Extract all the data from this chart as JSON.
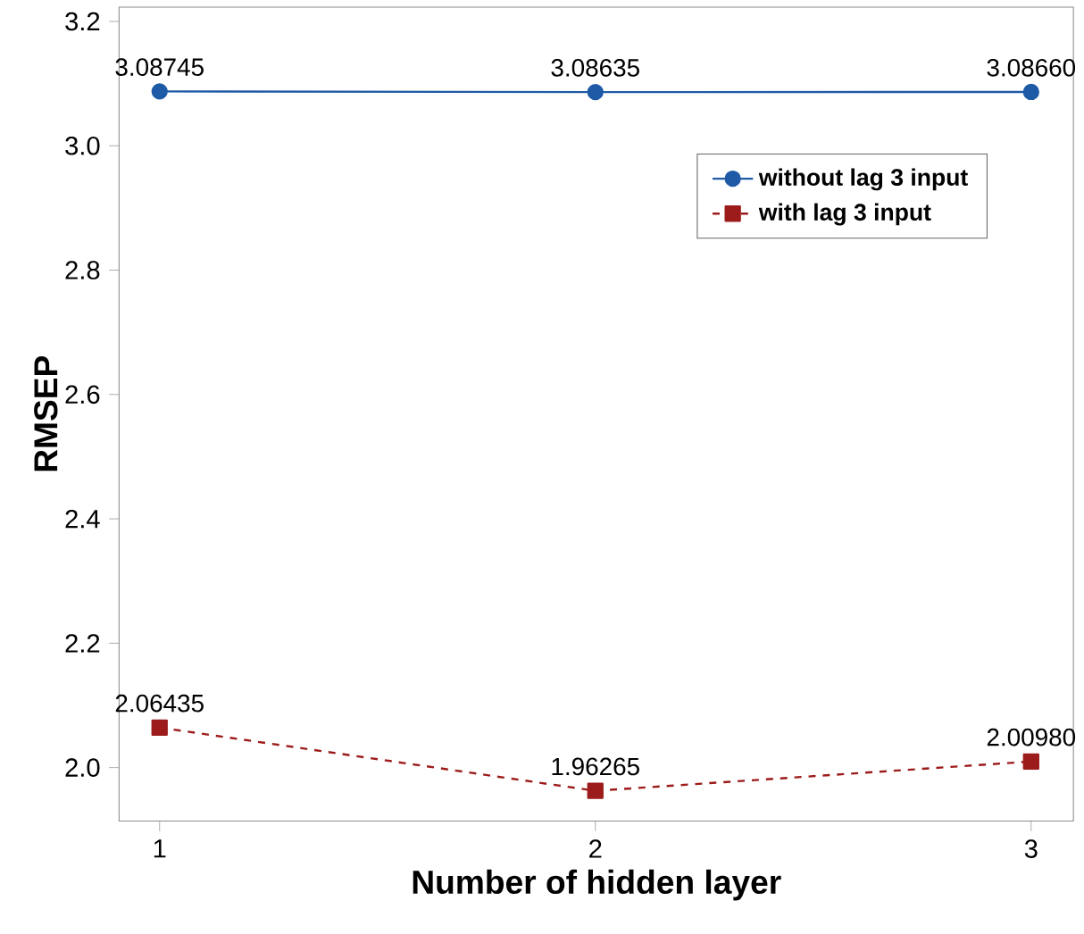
{
  "chart_data": {
    "type": "line",
    "xlabel": "Number of hidden layer",
    "ylabel": "RMSEP",
    "x": [
      1,
      2,
      3
    ],
    "series": [
      {
        "name": "without lag 3 input",
        "color": "#1f5aa6",
        "values": [
          3.08745,
          3.08635,
          3.0866
        ],
        "value_labels": [
          "3.08745",
          "3.08635",
          "3.08660"
        ],
        "marker": "circle",
        "line_style": "solid"
      },
      {
        "name": "with lag 3 input",
        "color": "#9c1b1b",
        "values": [
          2.06435,
          1.96265,
          2.0098
        ],
        "value_labels": [
          "2.06435",
          "1.96265",
          "2.00980"
        ],
        "marker": "square",
        "line_style": "dashed"
      }
    ],
    "xlim": [
      0.907,
      3.097
    ],
    "ylim": [
      1.914,
      3.223
    ],
    "xticks": [
      1,
      2,
      3
    ],
    "yticks": [
      {
        "value": 2,
        "label": "2.0"
      },
      2.2,
      2.4,
      2.6,
      2.8,
      {
        "value": 3,
        "label": "3.0"
      },
      3.2
    ],
    "legend": "top right",
    "grid": false
  }
}
